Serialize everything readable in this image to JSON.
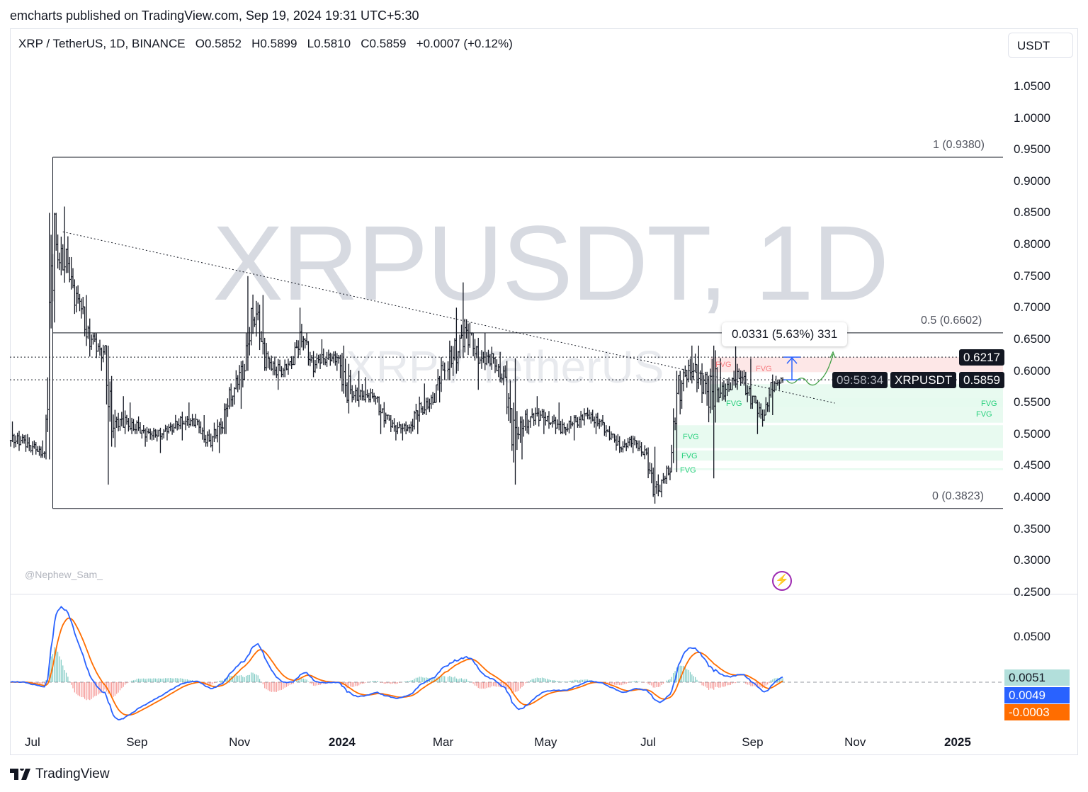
{
  "publisher": "emcharts published on TradingView.com, Sep 19, 2024 19:31 UTC+5:30",
  "legend": {
    "symbol": "XRP / TetherUS, 1D, BINANCE",
    "open": "O0.5852",
    "high": "H0.5899",
    "low": "L0.5810",
    "close": "C0.5859",
    "change": "+0.0007 (+0.12%)"
  },
  "currency_button": "USDT",
  "watermark": {
    "main": "XRPUSDT, 1D",
    "sub": "XRP / TetherUS"
  },
  "author_tag": "@Nephew_Sam_",
  "brand": "TradingView",
  "colors": {
    "up": "#131722",
    "macd": "#2962ff",
    "signal": "#ff6d00",
    "hist_pos": "#26a69a",
    "hist_neg": "#ef5350",
    "fvg_bull": "#e6f9ee",
    "fvg_bear": "#fde4e4",
    "fvg_text_bull": "#26d07c",
    "fvg_text_bear": "#f77c80",
    "path": "#43a047"
  },
  "annotations": {
    "fib_top": "1 (0.9380)",
    "fib_mid": "0.5 (0.6602)",
    "fib_bottom": "0 (0.3823)",
    "measure": "0.0331 (5.63%) 331",
    "fvg_label": "FVG",
    "level_label": "0.6217",
    "symbol_label": "XRPUSDT",
    "last_price": "0.5859",
    "countdown": "09:58:34",
    "macd_values": [
      "0.0051",
      "0.0049",
      "-0.0003"
    ]
  },
  "chart_data": {
    "type": "candlestick",
    "symbol": "XRPUSDT",
    "interval": "1D",
    "ylim": [
      0.25,
      1.07
    ],
    "yticks": [
      "1.0500",
      "1.0000",
      "0.9500",
      "0.9000",
      "0.8500",
      "0.8000",
      "0.7500",
      "0.7000",
      "0.6500",
      "0.6000",
      "0.5500",
      "0.5000",
      "0.4500",
      "0.4000",
      "0.3500",
      "0.3000",
      "0.2500"
    ],
    "xticks": [
      {
        "label": "Jul",
        "date": "2023-07-01",
        "bold": false
      },
      {
        "label": "Sep",
        "date": "2023-09-01",
        "bold": false
      },
      {
        "label": "Nov",
        "date": "2023-11-01",
        "bold": false
      },
      {
        "label": "2024",
        "date": "2024-01-01",
        "bold": true
      },
      {
        "label": "Mar",
        "date": "2024-03-01",
        "bold": false
      },
      {
        "label": "May",
        "date": "2024-05-01",
        "bold": false
      },
      {
        "label": "Jul",
        "date": "2024-07-01",
        "bold": false
      },
      {
        "label": "Sep",
        "date": "2024-09-01",
        "bold": false
      },
      {
        "label": "Nov",
        "date": "2024-11-01",
        "bold": false
      },
      {
        "label": "2025",
        "date": "2025-01-01",
        "bold": true
      }
    ],
    "weekly_hlc": [
      [
        "2023-06-18",
        0.52,
        0.47,
        0.49
      ],
      [
        "2023-06-25",
        0.5,
        0.46,
        0.48
      ],
      [
        "2023-07-02",
        0.49,
        0.46,
        0.47
      ],
      [
        "2023-07-09",
        0.85,
        0.46,
        0.8
      ],
      [
        "2023-07-16",
        0.86,
        0.72,
        0.77
      ],
      [
        "2023-07-23",
        0.78,
        0.68,
        0.71
      ],
      [
        "2023-07-30",
        0.72,
        0.62,
        0.65
      ],
      [
        "2023-08-06",
        0.66,
        0.6,
        0.63
      ],
      [
        "2023-08-13",
        0.64,
        0.42,
        0.52
      ],
      [
        "2023-08-20",
        0.56,
        0.5,
        0.52
      ],
      [
        "2023-08-27",
        0.55,
        0.5,
        0.51
      ],
      [
        "2023-09-03",
        0.52,
        0.48,
        0.5
      ],
      [
        "2023-09-10",
        0.51,
        0.47,
        0.5
      ],
      [
        "2023-09-17",
        0.52,
        0.49,
        0.51
      ],
      [
        "2023-09-24",
        0.54,
        0.49,
        0.52
      ],
      [
        "2023-10-01",
        0.55,
        0.51,
        0.52
      ],
      [
        "2023-10-08",
        0.53,
        0.48,
        0.49
      ],
      [
        "2023-10-15",
        0.53,
        0.47,
        0.51
      ],
      [
        "2023-10-22",
        0.58,
        0.5,
        0.56
      ],
      [
        "2023-10-29",
        0.62,
        0.54,
        0.6
      ],
      [
        "2023-11-05",
        0.75,
        0.6,
        0.69
      ],
      [
        "2023-11-12",
        0.72,
        0.6,
        0.62
      ],
      [
        "2023-11-19",
        0.63,
        0.57,
        0.6
      ],
      [
        "2023-11-26",
        0.63,
        0.59,
        0.61
      ],
      [
        "2023-12-03",
        0.7,
        0.61,
        0.65
      ],
      [
        "2023-12-10",
        0.66,
        0.59,
        0.61
      ],
      [
        "2023-12-17",
        0.65,
        0.6,
        0.62
      ],
      [
        "2023-12-24",
        0.64,
        0.6,
        0.62
      ],
      [
        "2023-12-31",
        0.64,
        0.5,
        0.57
      ],
      [
        "2024-01-07",
        0.6,
        0.54,
        0.56
      ],
      [
        "2024-01-14",
        0.59,
        0.55,
        0.56
      ],
      [
        "2024-01-21",
        0.56,
        0.5,
        0.53
      ],
      [
        "2024-01-28",
        0.53,
        0.49,
        0.51
      ],
      [
        "2024-02-04",
        0.52,
        0.49,
        0.51
      ],
      [
        "2024-02-11",
        0.56,
        0.5,
        0.54
      ],
      [
        "2024-02-18",
        0.58,
        0.53,
        0.55
      ],
      [
        "2024-02-25",
        0.64,
        0.55,
        0.6
      ],
      [
        "2024-03-04",
        0.7,
        0.57,
        0.63
      ],
      [
        "2024-03-11",
        0.74,
        0.62,
        0.66
      ],
      [
        "2024-03-18",
        0.66,
        0.57,
        0.62
      ],
      [
        "2024-03-25",
        0.66,
        0.6,
        0.62
      ],
      [
        "2024-04-01",
        0.63,
        0.57,
        0.59
      ],
      [
        "2024-04-08",
        0.62,
        0.42,
        0.5
      ],
      [
        "2024-04-15",
        0.54,
        0.46,
        0.52
      ],
      [
        "2024-04-22",
        0.56,
        0.51,
        0.53
      ],
      [
        "2024-04-29",
        0.54,
        0.5,
        0.52
      ],
      [
        "2024-05-06",
        0.55,
        0.5,
        0.51
      ],
      [
        "2024-05-13",
        0.53,
        0.49,
        0.52
      ],
      [
        "2024-05-20",
        0.55,
        0.51,
        0.53
      ],
      [
        "2024-05-27",
        0.54,
        0.5,
        0.52
      ],
      [
        "2024-06-03",
        0.53,
        0.49,
        0.5
      ],
      [
        "2024-06-10",
        0.5,
        0.46,
        0.48
      ],
      [
        "2024-06-17",
        0.5,
        0.47,
        0.49
      ],
      [
        "2024-06-24",
        0.49,
        0.46,
        0.47
      ],
      [
        "2024-07-01",
        0.48,
        0.38,
        0.41
      ],
      [
        "2024-07-08",
        0.45,
        0.4,
        0.44
      ],
      [
        "2024-07-15",
        0.6,
        0.44,
        0.58
      ],
      [
        "2024-07-22",
        0.64,
        0.56,
        0.6
      ],
      [
        "2024-07-29",
        0.64,
        0.53,
        0.58
      ],
      [
        "2024-08-05",
        0.64,
        0.43,
        0.57
      ],
      [
        "2024-08-12",
        0.62,
        0.55,
        0.57
      ],
      [
        "2024-08-19",
        0.64,
        0.57,
        0.59
      ],
      [
        "2024-08-26",
        0.62,
        0.54,
        0.56
      ],
      [
        "2024-09-02",
        0.56,
        0.5,
        0.53
      ],
      [
        "2024-09-09",
        0.6,
        0.53,
        0.58
      ],
      [
        "2024-09-16",
        0.5899,
        0.57,
        0.5859
      ]
    ],
    "last": {
      "open": 0.5852,
      "high": 0.5899,
      "low": 0.581,
      "close": 0.5859,
      "change": 0.0007,
      "change_pct": 0.12
    },
    "levels": {
      "fib_1": 0.938,
      "fib_05": 0.6602,
      "fib_0": 0.3823,
      "resistance": 0.6217,
      "current": 0.5859
    },
    "fib_start_date": "2023-07-13",
    "trendline": [
      [
        "2023-07-19",
        0.82
      ],
      [
        "2024-10-20",
        0.549
      ]
    ],
    "fvg_zones": [
      {
        "kind": "bear",
        "from": "2024-08-07",
        "top": 0.6217,
        "bottom": 0.598
      },
      {
        "kind": "bull",
        "from": "2024-08-07",
        "top": 0.579,
        "bottom": 0.518
      },
      {
        "kind": "bull",
        "from": "2024-09-10",
        "top": 0.557,
        "bottom": 0.543
      },
      {
        "kind": "bull",
        "from": "2024-07-16",
        "top": 0.514,
        "bottom": 0.478
      },
      {
        "kind": "bull",
        "from": "2024-07-16",
        "top": 0.474,
        "bottom": 0.458
      },
      {
        "kind": "bull",
        "from": "2024-07-16",
        "top": 0.446,
        "bottom": 0.443
      }
    ],
    "macd": {
      "fast": 12,
      "slow": 26,
      "signal": 9,
      "ytick": "0.0500",
      "ylim": [
        -0.04,
        0.09
      ]
    }
  }
}
